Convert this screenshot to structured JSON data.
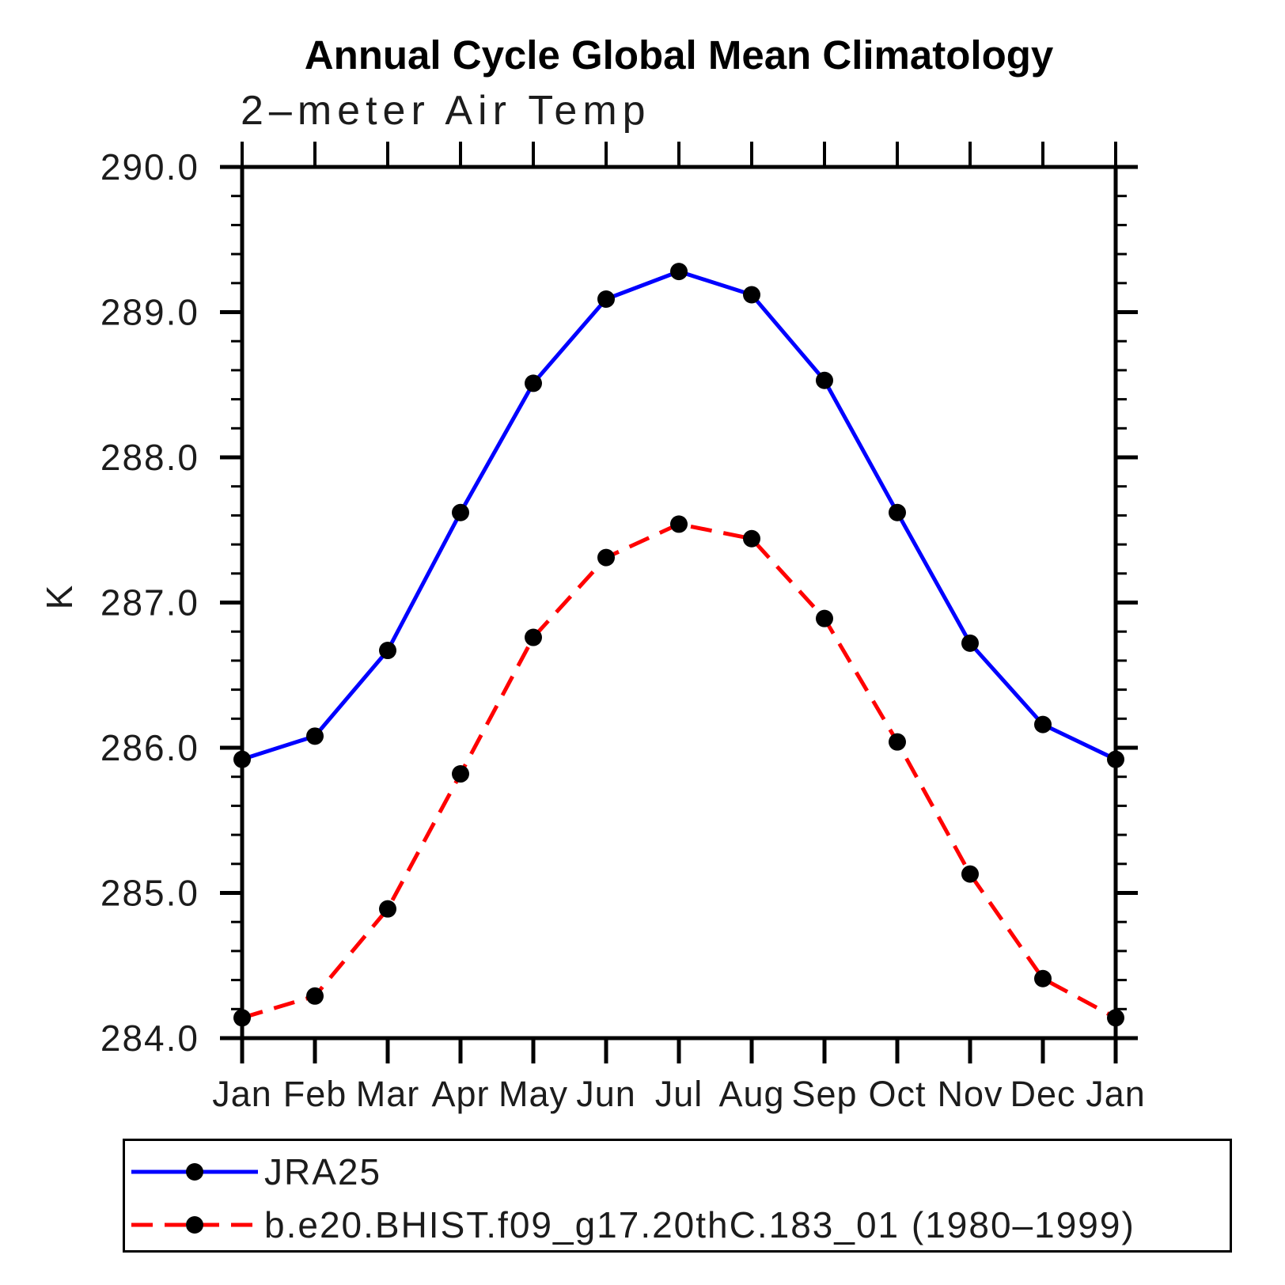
{
  "title": "Annual Cycle Global Mean Climatology",
  "subtitle": "2–meter Air Temp",
  "y_axis_label": "K",
  "colors": {
    "jra25_line": "#0000ff",
    "model_line": "#ff0000",
    "marker": "#000000",
    "axis": "#000000",
    "background": "#ffffff"
  },
  "legend": {
    "items": [
      {
        "label": "JRA25",
        "line_style": "solid",
        "color": "#0000ff"
      },
      {
        "label": "b.e20.BHIST.f09_g17.20thC.183_01 (1980–1999)",
        "line_style": "dashed",
        "color": "#ff0000"
      }
    ]
  },
  "chart_data": {
    "type": "line",
    "title": "Annual Cycle Global Mean Climatology",
    "subtitle": "2–meter Air Temp",
    "xlabel": "",
    "ylabel": "K",
    "categories": [
      "Jan",
      "Feb",
      "Mar",
      "Apr",
      "May",
      "Jun",
      "Jul",
      "Aug",
      "Sep",
      "Oct",
      "Nov",
      "Dec",
      "Jan"
    ],
    "ylim": [
      284.0,
      290.0
    ],
    "ytick_step": 1.0,
    "yminor_step": 0.2,
    "ytick_labels": [
      "284.0",
      "285.0",
      "286.0",
      "287.0",
      "288.0",
      "289.0",
      "290.0"
    ],
    "grid": false,
    "legend_position": "bottom",
    "series": [
      {
        "name": "JRA25",
        "color": "#0000ff",
        "style": "solid",
        "marker": "circle",
        "values": [
          285.92,
          286.08,
          286.67,
          287.62,
          288.51,
          289.09,
          289.28,
          289.12,
          288.53,
          287.62,
          286.72,
          286.16,
          285.92
        ]
      },
      {
        "name": "b.e20.BHIST.f09_g17.20thC.183_01 (1980–1999)",
        "color": "#ff0000",
        "style": "dashed",
        "marker": "circle",
        "values": [
          284.14,
          284.29,
          284.89,
          285.82,
          286.76,
          287.31,
          287.54,
          287.44,
          286.89,
          286.04,
          285.13,
          284.41,
          284.14
        ]
      }
    ]
  }
}
